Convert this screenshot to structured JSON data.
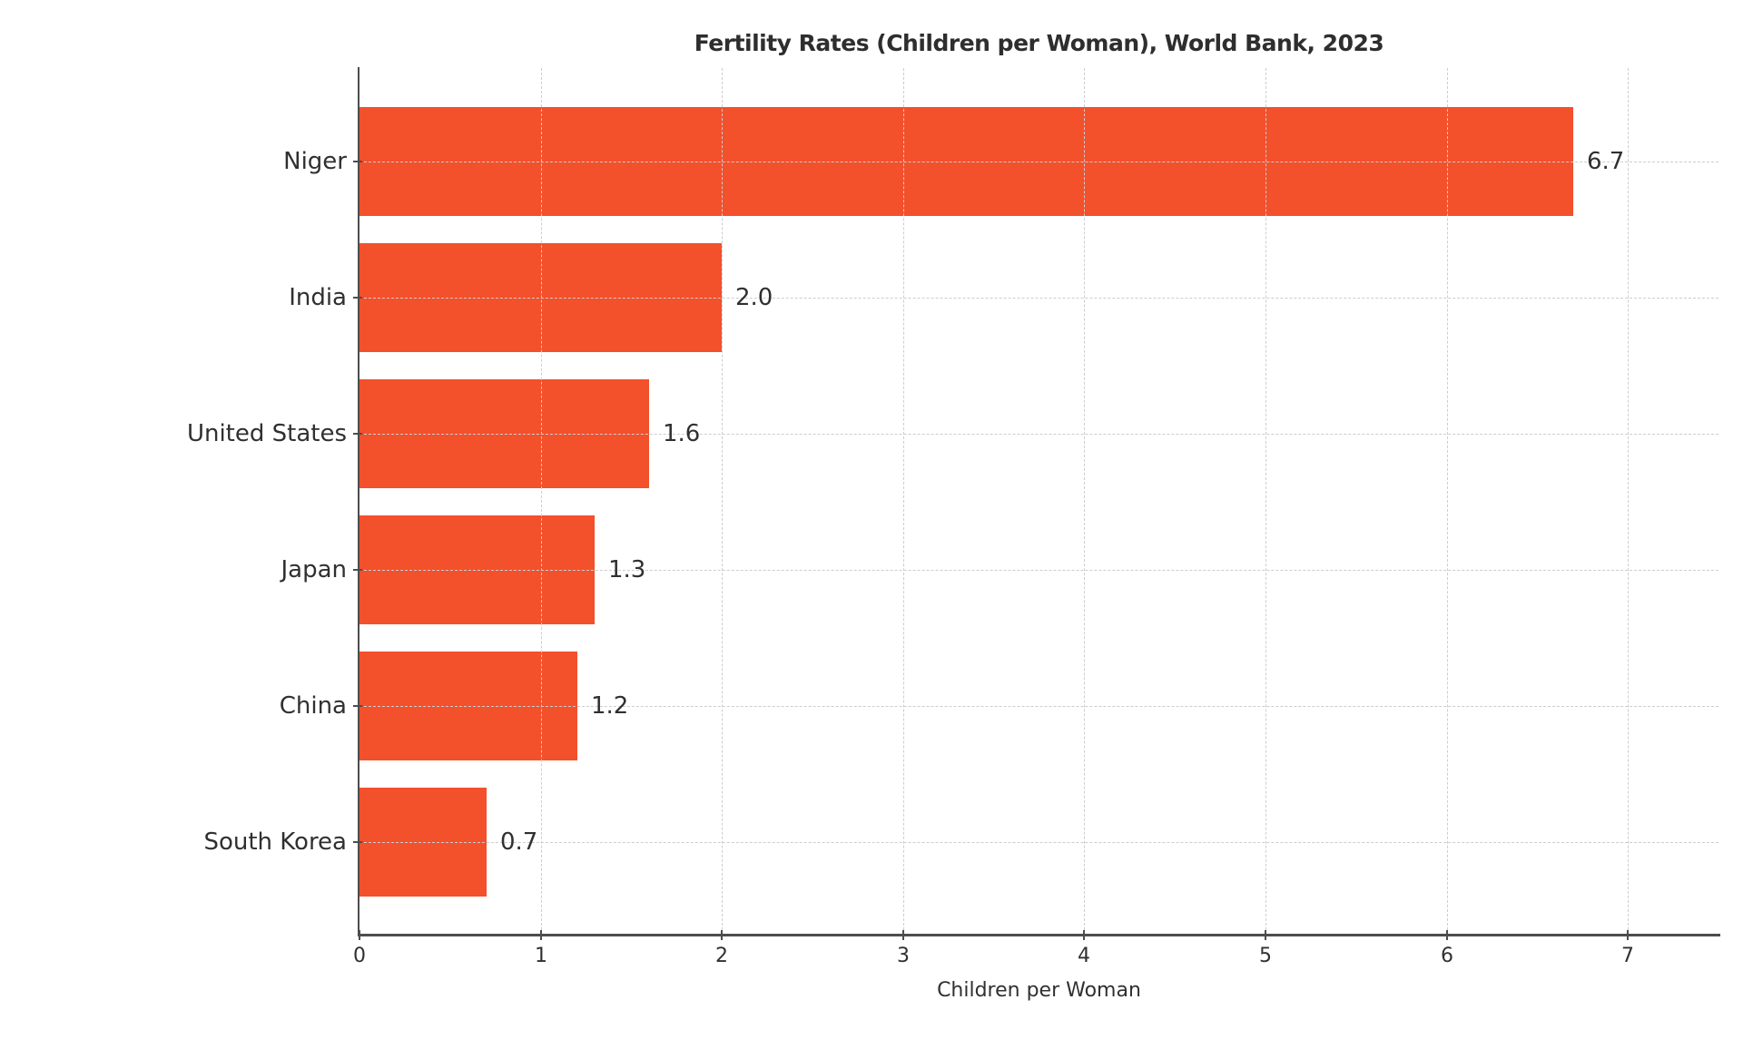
{
  "chart_data": {
    "type": "bar",
    "orientation": "horizontal",
    "title": "Fertility Rates (Children per Woman), World Bank, 2023",
    "categories": [
      "Niger",
      "India",
      "United States",
      "Japan",
      "China",
      "South Korea"
    ],
    "values": [
      6.7,
      2.0,
      1.6,
      1.3,
      1.2,
      0.7
    ],
    "value_labels": [
      "6.7",
      "2.0",
      "1.6",
      "1.3",
      "1.2",
      "0.7"
    ],
    "xlabel": "Children per Woman",
    "x_ticks": [
      0,
      1,
      2,
      3,
      4,
      5,
      6,
      7
    ],
    "xlim": [
      0,
      7.5
    ],
    "grid": "dashed, both axes",
    "legend": "none",
    "colors": {
      "bar": "#F3502C",
      "text": "#303030",
      "grid": "#cdcdcd",
      "spine": "#4d4d4d",
      "background": "#ffffff"
    }
  }
}
